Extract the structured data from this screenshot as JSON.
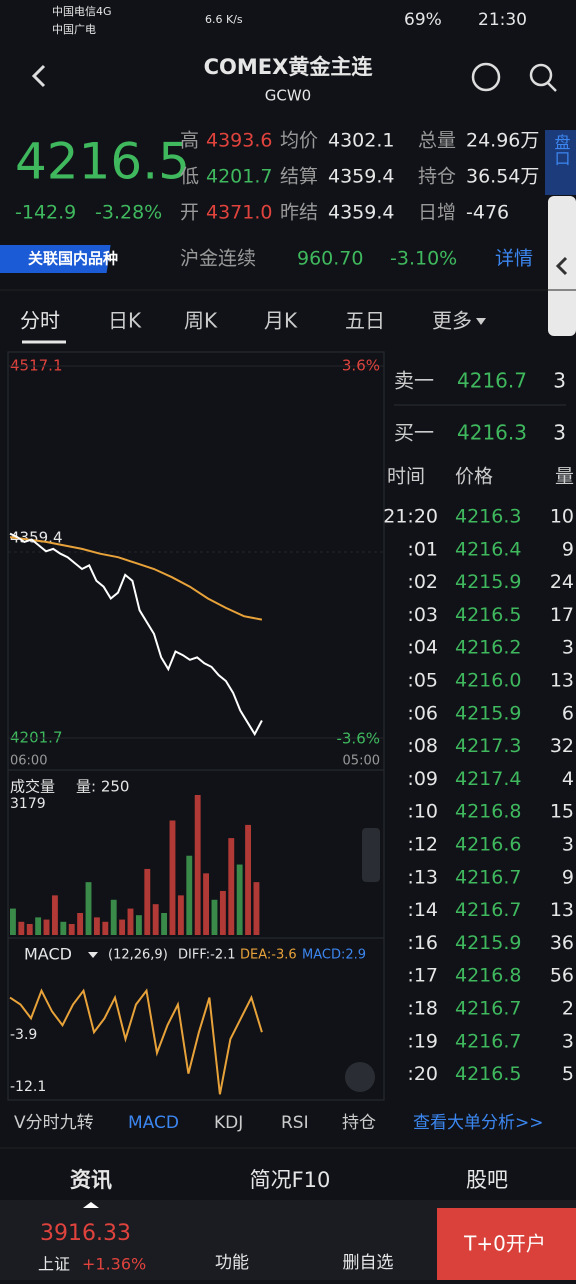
{
  "status": {
    "carrier1": "中国电信4G",
    "carrier2": "中国广电",
    "speed": "6.6 K/s",
    "battery": "69%",
    "time": "21:30"
  },
  "header": {
    "title": "COMEX黄金主连",
    "code": "GCW0"
  },
  "quote": {
    "price": "4216.5",
    "change": "-142.9",
    "change_pct": "-3.28%",
    "stats": [
      [
        "高",
        "4393.6"
      ],
      [
        "均价",
        "4302.1"
      ],
      [
        "总量",
        "24.96万"
      ],
      [
        "低",
        "4201.7"
      ],
      [
        "结算",
        "4359.4"
      ],
      [
        "持仓",
        "36.54万"
      ],
      [
        "开",
        "4371.0"
      ],
      [
        "昨结",
        "4359.4"
      ],
      [
        "日增",
        "-476"
      ]
    ],
    "side_tab": "盘口"
  },
  "related": {
    "badge": "关联国内品种",
    "name": "沪金连续",
    "price": "960.70",
    "pct": "-3.10%",
    "link": "详情"
  },
  "tabs": [
    "分时",
    "日K",
    "周K",
    "月K",
    "五日",
    "更多"
  ],
  "intraday": {
    "ylim": [
      4201.7,
      4517.1
    ],
    "yticks": [
      4517.1,
      {
        "value": 4359.4,
        "label": "4359.4"
      },
      4201.7
    ],
    "pct_top": "3.6%",
    "pct_bottom": "-3.6%",
    "time_start": "06:00",
    "time_end": "05:00",
    "price": [
      4375,
      4372,
      4368,
      4370,
      4365,
      4360,
      4362,
      4358,
      4355,
      4350,
      4345,
      4348,
      4335,
      4330,
      4320,
      4325,
      4340,
      4335,
      4310,
      4300,
      4290,
      4270,
      4260,
      4275,
      4272,
      4268,
      4270,
      4265,
      4262,
      4255,
      4250,
      4240,
      4225,
      4215,
      4205,
      4216.5
    ],
    "avg": [
      4372,
      4370,
      4368,
      4365,
      4362,
      4358,
      4355,
      4350,
      4345,
      4338,
      4330,
      4320,
      4312,
      4305,
      4302.1
    ],
    "volume_label": "成交量",
    "volume_sub": "量: 250",
    "volume_max": 3179,
    "volume": [
      600,
      300,
      250,
      400,
      350,
      900,
      300,
      250,
      500,
      1200,
      400,
      300,
      800,
      350,
      600,
      450,
      1500,
      700,
      500,
      2600,
      900,
      1800,
      3179,
      1400,
      800,
      1000,
      2200,
      1600,
      2500,
      1200
    ],
    "macd_label": "MACD",
    "macd_params": "(12,26,9)",
    "diff": "DIFF:-2.1",
    "dea": "DEA:-3.6",
    "macd": "MACD:2.9",
    "macd_ylim": [
      -12.1,
      6
    ],
    "macd_ticks": [
      "-3.9",
      "-12.1"
    ],
    "diff_values": [
      2,
      1,
      -1,
      3,
      0,
      -2,
      1,
      3,
      -3,
      -1,
      2,
      -4,
      1,
      3,
      -6,
      -2,
      1,
      -9,
      -3,
      2,
      -12,
      -4,
      -1,
      2,
      -3
    ]
  },
  "order_book": {
    "sell": [
      "卖一",
      "4216.7",
      "3"
    ],
    "buy": [
      "买一",
      "4216.3",
      "3"
    ],
    "head": [
      "时间",
      "价格",
      "量"
    ],
    "rows": [
      [
        "21:20",
        "4216.3",
        "10"
      ],
      [
        ":01",
        "4216.4",
        "9"
      ],
      [
        ":02",
        "4215.9",
        "24"
      ],
      [
        ":03",
        "4216.5",
        "17"
      ],
      [
        ":04",
        "4216.2",
        "3"
      ],
      [
        ":05",
        "4216.0",
        "13"
      ],
      [
        ":06",
        "4215.9",
        "6"
      ],
      [
        ":08",
        "4217.3",
        "32"
      ],
      [
        ":09",
        "4217.4",
        "4"
      ],
      [
        ":10",
        "4216.8",
        "15"
      ],
      [
        ":12",
        "4216.6",
        "3"
      ],
      [
        ":13",
        "4216.7",
        "9"
      ],
      [
        ":14",
        "4216.7",
        "13"
      ],
      [
        ":16",
        "4215.9",
        "36"
      ],
      [
        ":17",
        "4216.8",
        "56"
      ],
      [
        ":18",
        "4216.7",
        "2"
      ],
      [
        ":19",
        "4216.7",
        "3"
      ],
      [
        ":20",
        "4216.5",
        "5"
      ]
    ]
  },
  "indicators": [
    "V分时九转",
    "MACD",
    "KDJ",
    "RSI",
    "持仓",
    "查看大单分析>>"
  ],
  "bottom_tabs": [
    "资讯",
    "简况F10",
    "股吧"
  ],
  "footer": {
    "index": "3916.33",
    "index_name": "上证",
    "index_pct": "+1.36%",
    "func": "功能",
    "remove": "删自选",
    "open": "T+0开户"
  }
}
